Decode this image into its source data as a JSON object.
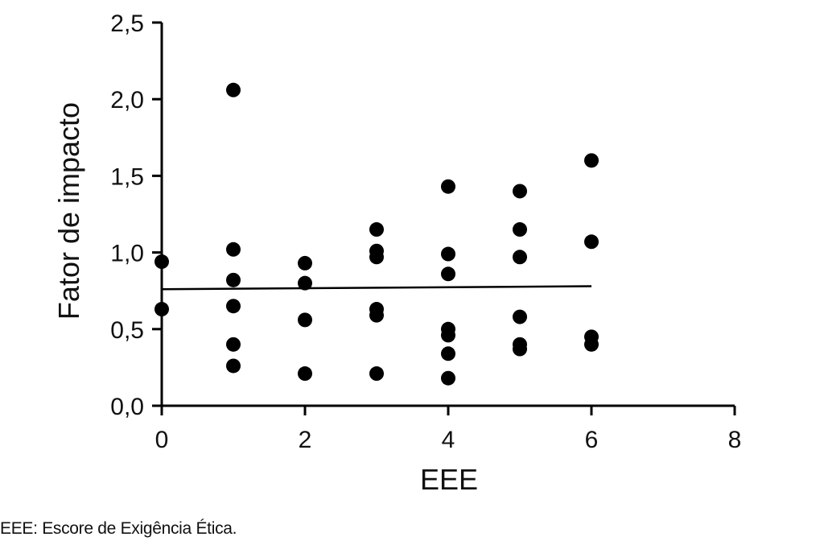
{
  "chart_data": {
    "type": "scatter",
    "xlabel": "EEE",
    "ylabel": "Fator de impacto",
    "xlim": [
      0,
      8
    ],
    "ylim": [
      0,
      2.5
    ],
    "x_ticks": [
      "0",
      "2",
      "4",
      "6",
      "8"
    ],
    "y_ticks": [
      "0,0",
      "0,5",
      "1,0",
      "1,5",
      "2,0",
      "2,5"
    ],
    "x_tick_values": [
      0,
      2,
      4,
      6,
      8
    ],
    "y_tick_values": [
      0,
      0.5,
      1.0,
      1.5,
      2.0,
      2.5
    ],
    "grid": false,
    "points": [
      {
        "x": 0,
        "y": 0.94
      },
      {
        "x": 0,
        "y": 0.63
      },
      {
        "x": 1,
        "y": 2.06
      },
      {
        "x": 1,
        "y": 1.02
      },
      {
        "x": 1,
        "y": 0.82
      },
      {
        "x": 1,
        "y": 0.65
      },
      {
        "x": 1,
        "y": 0.4
      },
      {
        "x": 1,
        "y": 0.26
      },
      {
        "x": 2,
        "y": 0.93
      },
      {
        "x": 2,
        "y": 0.8
      },
      {
        "x": 2,
        "y": 0.56
      },
      {
        "x": 2,
        "y": 0.21
      },
      {
        "x": 3,
        "y": 1.15
      },
      {
        "x": 3,
        "y": 1.01
      },
      {
        "x": 3,
        "y": 0.97
      },
      {
        "x": 3,
        "y": 0.63
      },
      {
        "x": 3,
        "y": 0.59
      },
      {
        "x": 3,
        "y": 0.21
      },
      {
        "x": 4,
        "y": 1.43
      },
      {
        "x": 4,
        "y": 0.99
      },
      {
        "x": 4,
        "y": 0.86
      },
      {
        "x": 4,
        "y": 0.5
      },
      {
        "x": 4,
        "y": 0.46
      },
      {
        "x": 4,
        "y": 0.34
      },
      {
        "x": 4,
        "y": 0.18
      },
      {
        "x": 5,
        "y": 1.4
      },
      {
        "x": 5,
        "y": 1.15
      },
      {
        "x": 5,
        "y": 0.97
      },
      {
        "x": 5,
        "y": 0.58
      },
      {
        "x": 5,
        "y": 0.4
      },
      {
        "x": 5,
        "y": 0.37
      },
      {
        "x": 6,
        "y": 1.6
      },
      {
        "x": 6,
        "y": 1.07
      },
      {
        "x": 6,
        "y": 0.45
      },
      {
        "x": 6,
        "y": 0.4
      }
    ],
    "regression_line": {
      "x": [
        0,
        6
      ],
      "y": [
        0.76,
        0.78
      ]
    }
  },
  "footnote": "EEE: Escore de Exigência Ética."
}
